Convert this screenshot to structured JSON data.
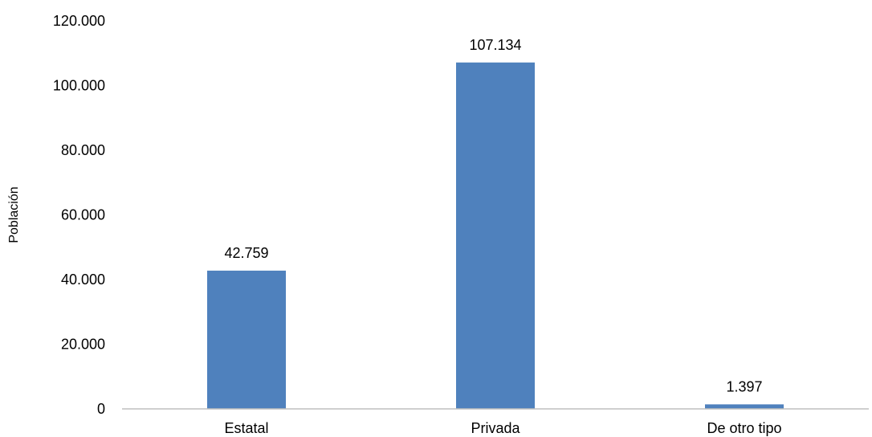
{
  "chart_data": {
    "type": "bar",
    "categories": [
      "Estatal",
      "Privada",
      "De otro tipo"
    ],
    "values": [
      42759,
      107134,
      1397
    ],
    "value_labels": [
      "42.759",
      "107.134",
      "1.397"
    ],
    "ylabel": "Población",
    "xlabel": "",
    "title": "",
    "ylim": [
      0,
      120000
    ],
    "yticks": [
      0,
      20000,
      40000,
      60000,
      80000,
      100000,
      120000
    ],
    "ytick_labels": [
      "0",
      "20.000",
      "40.000",
      "60.000",
      "80.000",
      "100.000",
      "120.000"
    ],
    "grid": false,
    "legend": "none",
    "bar_color": "#4F81BD",
    "axis_color": "#BFBFBF"
  }
}
